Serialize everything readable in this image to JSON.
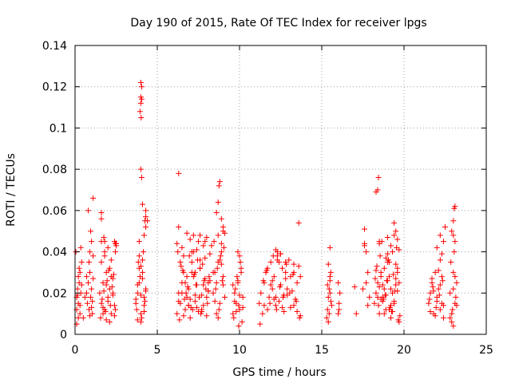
{
  "chart_data": {
    "type": "scatter",
    "title": "Day 190 of 2015, Rate Of TEC Index for receiver lpgs",
    "xlabel": "GPS time / hours",
    "ylabel": "ROTI / TECUs",
    "xlim": [
      0,
      25
    ],
    "ylim": [
      0,
      0.14
    ],
    "xticks": [
      0,
      5,
      10,
      15,
      20,
      25
    ],
    "xtick_labels": [
      "0",
      "5",
      "10",
      "15",
      "20",
      "25"
    ],
    "yticks": [
      0,
      0.02,
      0.04,
      0.06,
      0.08,
      0.1,
      0.12,
      0.14
    ],
    "ytick_labels": [
      "0",
      "0.02",
      "0.04",
      "0.06",
      "0.08",
      "0.1",
      "0.12",
      "0.14"
    ],
    "grid": true,
    "marker": "+",
    "marker_color": "#ff0000",
    "series": [
      {
        "name": "ROTI",
        "x": [
          0.1,
          0.1,
          0.15,
          0.2,
          0.2,
          0.25,
          0.3,
          0.3,
          0.35,
          0.4,
          0.05,
          0.1,
          0.2,
          0.3,
          0.35,
          0.15,
          0.25,
          0.4,
          0.5,
          0.6,
          0.7,
          0.75,
          0.8,
          0.85,
          0.9,
          0.95,
          1.0,
          1.05,
          1.1,
          0.85,
          0.9,
          1.0,
          1.1,
          0.95,
          1.05,
          0.7,
          1.1,
          0.8,
          0.9,
          1.0,
          1.5,
          1.6,
          1.7,
          1.8,
          1.9,
          2.0,
          2.1,
          2.2,
          2.3,
          2.4,
          1.6,
          1.8,
          2.0,
          2.2,
          2.4,
          1.7,
          1.9,
          2.1,
          2.3,
          1.55,
          1.65,
          1.75,
          1.85,
          1.95,
          2.05,
          2.15,
          2.25,
          2.35,
          2.45,
          1.6,
          1.8,
          2.0,
          2.2,
          1.7,
          1.9,
          2.1,
          2.3,
          2.5,
          2.45,
          2.5,
          1.6,
          1.6,
          1.75,
          1.8,
          2.4,
          2.45,
          2.5,
          3.7,
          3.8,
          3.9,
          4.0,
          4.1,
          4.2,
          4.3,
          3.75,
          3.85,
          3.95,
          4.05,
          4.15,
          4.25,
          3.8,
          3.9,
          4.0,
          4.1,
          4.2,
          3.9,
          4.0,
          4.1,
          4.2,
          4.3,
          3.8,
          4.0,
          4.2,
          4.3,
          4.4,
          3.7,
          3.9,
          4.0,
          4.05,
          3.95,
          4.0,
          4.0,
          4.05,
          4.0,
          4.02,
          4.05,
          4.1,
          4.3,
          4.25,
          4.3,
          6.2,
          6.3,
          6.4,
          6.5,
          6.6,
          6.7,
          6.8,
          6.9,
          7.0,
          7.1,
          7.2,
          7.3,
          7.4,
          7.5,
          7.6,
          7.7,
          7.8,
          7.9,
          8.0,
          8.1,
          6.25,
          6.45,
          6.65,
          6.85,
          7.05,
          7.25,
          7.45,
          7.65,
          7.85,
          8.05,
          6.35,
          6.55,
          6.75,
          6.95,
          7.15,
          7.35,
          7.55,
          7.75,
          7.95,
          8.15,
          6.3,
          6.5,
          6.7,
          6.9,
          7.1,
          7.3,
          7.5,
          7.7,
          7.9,
          8.1,
          6.4,
          6.6,
          6.8,
          7.0,
          7.2,
          7.4,
          7.6,
          7.8,
          8.0,
          8.2,
          6.2,
          6.6,
          7.0,
          7.4,
          7.8,
          8.2,
          6.5,
          6.9,
          7.3,
          7.7,
          8.1,
          6.3,
          6.8,
          7.2,
          7.6,
          8.0,
          6.3,
          7.1,
          7.6,
          7.9,
          8.3,
          8.4,
          8.5,
          8.6,
          8.7,
          8.8,
          8.9,
          9.0,
          9.1,
          8.45,
          8.55,
          8.65,
          8.75,
          8.85,
          8.95,
          9.05,
          8.5,
          8.7,
          8.9,
          9.0,
          8.6,
          8.8,
          9.0,
          8.4,
          8.7,
          8.9,
          8.7,
          8.75,
          8.8,
          9.0,
          8.6,
          8.9,
          9.1,
          9.6,
          9.7,
          9.8,
          9.9,
          10.0,
          10.1,
          10.2,
          9.65,
          9.75,
          9.85,
          9.95,
          10.05,
          10.15,
          9.7,
          9.9,
          10.1,
          9.8,
          10.0,
          9.6,
          10.2,
          9.9,
          10.0,
          9.95,
          11.2,
          11.3,
          11.4,
          11.5,
          11.6,
          11.7,
          11.8,
          11.9,
          12.0,
          12.1,
          12.2,
          12.3,
          12.4,
          12.5,
          12.6,
          12.7,
          12.8,
          12.9,
          13.0,
          13.1,
          13.2,
          13.3,
          13.4,
          13.5,
          13.6,
          13.7,
          11.25,
          11.45,
          11.65,
          11.85,
          12.05,
          12.25,
          12.45,
          12.65,
          12.85,
          13.05,
          13.25,
          13.45,
          13.65,
          11.5,
          11.9,
          12.3,
          12.7,
          13.1,
          13.5,
          11.7,
          12.1,
          12.5,
          12.9,
          13.3,
          12.0,
          12.2,
          12.4,
          12.6,
          12.8,
          12.2,
          12.3,
          12.5,
          12.8,
          13.3,
          13.6,
          13.7,
          15.3,
          15.35,
          15.4,
          15.45,
          15.5,
          15.55,
          15.6,
          15.4,
          15.5,
          15.45,
          15.35,
          15.55,
          15.5,
          15.4,
          15.5,
          16.0,
          16.05,
          16.1,
          16.0,
          16.05,
          17.0,
          17.1,
          17.5,
          17.6,
          17.7,
          17.8,
          17.9,
          17.6,
          17.7,
          17.8,
          18.2,
          18.3,
          18.4,
          18.5,
          18.6,
          18.7,
          18.8,
          18.9,
          19.0,
          19.1,
          19.2,
          19.3,
          19.4,
          19.5,
          19.6,
          19.7,
          18.25,
          18.45,
          18.65,
          18.85,
          19.05,
          19.25,
          19.45,
          19.65,
          18.35,
          18.55,
          18.75,
          18.95,
          19.15,
          19.35,
          19.55,
          19.75,
          18.3,
          18.5,
          18.7,
          18.9,
          19.1,
          19.3,
          19.5,
          19.7,
          18.4,
          18.6,
          18.8,
          19.0,
          19.2,
          19.4,
          19.6,
          18.5,
          18.7,
          18.9,
          19.1,
          19.3,
          19.5,
          19.7,
          18.6,
          18.8,
          19.0,
          19.2,
          19.4,
          19.6,
          18.3,
          18.4,
          18.45,
          19.4,
          19.5,
          19.6,
          19.2,
          18.5,
          19.0,
          17.6,
          21.5,
          21.6,
          21.7,
          21.8,
          21.9,
          22.0,
          22.1,
          22.2,
          22.3,
          22.4,
          21.55,
          21.75,
          21.95,
          22.15,
          22.35,
          21.6,
          21.8,
          22.0,
          22.2,
          22.4,
          21.7,
          21.9,
          22.1,
          22.3,
          22.0,
          22.2,
          22.3,
          22.4,
          22.5,
          22.2,
          22.8,
          22.9,
          23.0,
          23.1,
          23.2,
          22.85,
          22.95,
          23.05,
          23.15,
          22.9,
          23.0,
          23.1,
          22.8,
          23.2,
          23.0,
          23.0,
          23.05,
          23.1,
          23.0,
          23.1,
          22.9
        ],
        "y": [
          0.012,
          0.018,
          0.022,
          0.008,
          0.015,
          0.025,
          0.01,
          0.03,
          0.02,
          0.035,
          0.04,
          0.005,
          0.028,
          0.014,
          0.042,
          0.019,
          0.032,
          0.024,
          0.008,
          0.018,
          0.02,
          0.015,
          0.025,
          0.012,
          0.03,
          0.018,
          0.022,
          0.01,
          0.027,
          0.035,
          0.04,
          0.045,
          0.038,
          0.05,
          0.016,
          0.028,
          0.066,
          0.06,
          0.009,
          0.013,
          0.02,
          0.015,
          0.025,
          0.012,
          0.03,
          0.018,
          0.022,
          0.01,
          0.027,
          0.014,
          0.035,
          0.04,
          0.016,
          0.028,
          0.009,
          0.013,
          0.024,
          0.032,
          0.019,
          0.008,
          0.017,
          0.021,
          0.011,
          0.026,
          0.031,
          0.014,
          0.023,
          0.029,
          0.012,
          0.045,
          0.038,
          0.042,
          0.036,
          0.01,
          0.007,
          0.006,
          0.02,
          0.043,
          0.04,
          0.044,
          0.059,
          0.056,
          0.047,
          0.045,
          0.045,
          0.044,
          0.044,
          0.015,
          0.02,
          0.025,
          0.01,
          0.03,
          0.018,
          0.022,
          0.012,
          0.035,
          0.028,
          0.008,
          0.04,
          0.016,
          0.024,
          0.032,
          0.006,
          0.027,
          0.014,
          0.045,
          0.019,
          0.036,
          0.011,
          0.021,
          0.007,
          0.033,
          0.048,
          0.052,
          0.055,
          0.017,
          0.038,
          0.08,
          0.076,
          0.108,
          0.112,
          0.115,
          0.12,
          0.122,
          0.105,
          0.114,
          0.063,
          0.057,
          0.055,
          0.06,
          0.01,
          0.02,
          0.015,
          0.025,
          0.03,
          0.012,
          0.018,
          0.022,
          0.008,
          0.035,
          0.028,
          0.016,
          0.024,
          0.011,
          0.032,
          0.019,
          0.014,
          0.027,
          0.009,
          0.021,
          0.04,
          0.033,
          0.017,
          0.023,
          0.013,
          0.029,
          0.036,
          0.01,
          0.026,
          0.015,
          0.007,
          0.031,
          0.02,
          0.038,
          0.012,
          0.024,
          0.018,
          0.034,
          0.022,
          0.028,
          0.016,
          0.042,
          0.025,
          0.014,
          0.03,
          0.019,
          0.045,
          0.011,
          0.037,
          0.021,
          0.035,
          0.009,
          0.028,
          0.017,
          0.04,
          0.013,
          0.032,
          0.024,
          0.018,
          0.026,
          0.044,
          0.038,
          0.046,
          0.041,
          0.043,
          0.039,
          0.02,
          0.014,
          0.03,
          0.012,
          0.025,
          0.052,
          0.049,
          0.048,
          0.036,
          0.047,
          0.078,
          0.04,
          0.048,
          0.045,
          0.043,
          0.02,
          0.03,
          0.025,
          0.035,
          0.015,
          0.04,
          0.028,
          0.018,
          0.045,
          0.022,
          0.032,
          0.012,
          0.038,
          0.026,
          0.042,
          0.016,
          0.048,
          0.034,
          0.05,
          0.01,
          0.036,
          0.024,
          0.03,
          0.008,
          0.044,
          0.064,
          0.072,
          0.074,
          0.052,
          0.059,
          0.056,
          0.049,
          0.01,
          0.02,
          0.015,
          0.025,
          0.012,
          0.03,
          0.018,
          0.008,
          0.022,
          0.028,
          0.014,
          0.035,
          0.006,
          0.016,
          0.026,
          0.032,
          0.011,
          0.019,
          0.024,
          0.013,
          0.04,
          0.038,
          0.004,
          0.015,
          0.02,
          0.01,
          0.025,
          0.03,
          0.012,
          0.018,
          0.035,
          0.022,
          0.028,
          0.014,
          0.04,
          0.016,
          0.024,
          0.032,
          0.011,
          0.027,
          0.019,
          0.036,
          0.013,
          0.021,
          0.03,
          0.017,
          0.025,
          0.033,
          0.009,
          0.005,
          0.026,
          0.031,
          0.015,
          0.038,
          0.012,
          0.023,
          0.018,
          0.034,
          0.02,
          0.029,
          0.016,
          0.008,
          0.014,
          0.024,
          0.036,
          0.019,
          0.028,
          0.011,
          0.032,
          0.017,
          0.039,
          0.022,
          0.014,
          0.026,
          0.018,
          0.035,
          0.013,
          0.03,
          0.041,
          0.038,
          0.039,
          0.035,
          0.034,
          0.054,
          0.028,
          0.008,
          0.012,
          0.018,
          0.022,
          0.026,
          0.03,
          0.014,
          0.034,
          0.02,
          0.01,
          0.024,
          0.016,
          0.028,
          0.006,
          0.042,
          0.01,
          0.015,
          0.02,
          0.025,
          0.012,
          0.023,
          0.01,
          0.022,
          0.051,
          0.025,
          0.014,
          0.018,
          0.044,
          0.04,
          0.03,
          0.015,
          0.02,
          0.025,
          0.01,
          0.03,
          0.018,
          0.022,
          0.012,
          0.035,
          0.028,
          0.008,
          0.04,
          0.016,
          0.024,
          0.032,
          0.006,
          0.027,
          0.014,
          0.045,
          0.019,
          0.036,
          0.011,
          0.021,
          0.007,
          0.033,
          0.038,
          0.017,
          0.026,
          0.013,
          0.029,
          0.042,
          0.009,
          0.031,
          0.023,
          0.016,
          0.037,
          0.012,
          0.02,
          0.034,
          0.025,
          0.018,
          0.028,
          0.01,
          0.039,
          0.022,
          0.015,
          0.03,
          0.044,
          0.024,
          0.019,
          0.035,
          0.011,
          0.027,
          0.041,
          0.017,
          0.032,
          0.026,
          0.014,
          0.048,
          0.021,
          0.069,
          0.07,
          0.076,
          0.054,
          0.05,
          0.046,
          0.043,
          0.045,
          0.047,
          0.043,
          0.015,
          0.02,
          0.025,
          0.01,
          0.03,
          0.018,
          0.022,
          0.012,
          0.028,
          0.008,
          0.017,
          0.023,
          0.013,
          0.019,
          0.026,
          0.011,
          0.021,
          0.016,
          0.024,
          0.014,
          0.027,
          0.009,
          0.031,
          0.015,
          0.042,
          0.036,
          0.039,
          0.045,
          0.052,
          0.048,
          0.02,
          0.01,
          0.03,
          0.015,
          0.025,
          0.035,
          0.012,
          0.04,
          0.018,
          0.006,
          0.022,
          0.028,
          0.008,
          0.014,
          0.004,
          0.055,
          0.061,
          0.062,
          0.048,
          0.045,
          0.05
        ]
      }
    ]
  }
}
